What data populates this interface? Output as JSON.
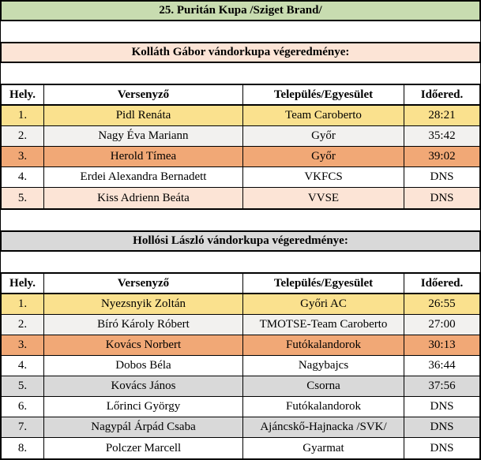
{
  "title": "25. Puritán Kupa /Sziget Brand/",
  "colors": {
    "title_bg": "#c8dcb0",
    "section1_bg": "#fce4d6",
    "section2_bg": "#d9d9d9",
    "gold": "#fae18e",
    "orange": "#f1a876",
    "peach": "#fce4d6",
    "gray": "#d9d9d9",
    "light": "#f2f1ef",
    "white": "#ffffff",
    "border": "#000000"
  },
  "columns": [
    "Hely.",
    "Versenyző",
    "Település/Egyesület",
    "Időered."
  ],
  "sections": [
    {
      "heading": "Kolláth Gábor vándorkupa végeredménye:",
      "rows": [
        {
          "place": "1.",
          "name": "Pidl Renáta",
          "club": "Team Caroberto",
          "time": "28:21",
          "bg": "gold"
        },
        {
          "place": "2.",
          "name": "Nagy Éva Mariann",
          "club": "Győr",
          "time": "35:42",
          "bg": "light"
        },
        {
          "place": "3.",
          "name": "Herold Tímea",
          "club": "Győr",
          "time": "39:02",
          "bg": "orange"
        },
        {
          "place": "4.",
          "name": "Erdei Alexandra Bernadett",
          "club": "VKFCS",
          "time": "DNS",
          "bg": "white"
        },
        {
          "place": "5.",
          "name": "Kiss Adrienn Beáta",
          "club": "VVSE",
          "time": "DNS",
          "bg": "peach"
        }
      ]
    },
    {
      "heading": "Hollósi László vándorkupa végeredménye:",
      "rows": [
        {
          "place": "1.",
          "name": "Nyezsnyik Zoltán",
          "club": "Győri AC",
          "time": "26:55",
          "bg": "gold"
        },
        {
          "place": "2.",
          "name": "Bíró Károly Róbert",
          "club": "TMOTSE-Team Caroberto",
          "time": "27:00",
          "bg": "light"
        },
        {
          "place": "3.",
          "name": "Kovács Norbert",
          "club": "Futókalandorok",
          "time": "30:13",
          "bg": "orange"
        },
        {
          "place": "4.",
          "name": "Dobos Béla",
          "club": "Nagybajcs",
          "time": "36:44",
          "bg": "white"
        },
        {
          "place": "5.",
          "name": "Kovács János",
          "club": "Csorna",
          "time": "37:56",
          "bg": "gray"
        },
        {
          "place": "6.",
          "name": "Lőrinci György",
          "club": "Futókalandorok",
          "time": "DNS",
          "bg": "white"
        },
        {
          "place": "7.",
          "name": "Nagypál Árpád Csaba",
          "club": "Ajáncskő-Hajnacka /SVK/",
          "time": "DNS",
          "bg": "gray"
        },
        {
          "place": "8.",
          "name": "Polczer Marcell",
          "club": "Gyarmat",
          "time": "DNS",
          "bg": "white"
        }
      ]
    }
  ]
}
